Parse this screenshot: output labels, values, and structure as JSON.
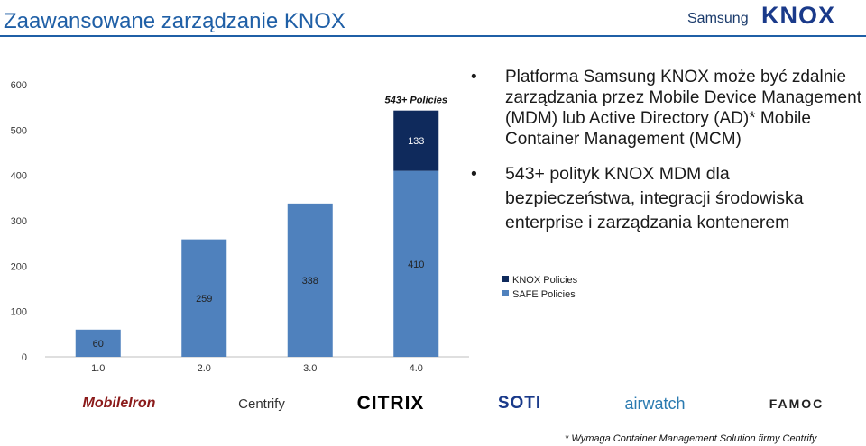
{
  "header": {
    "title": "Zaawansowane zarządzanie KNOX"
  },
  "logo": {
    "brand": "Samsung",
    "mark": "KNOX"
  },
  "bullets": [
    "Platforma Samsung KNOX może być zdalnie zarządzania przez Mobile Device Management (MDM) lub Active Directory (AD)* Mobile Container Management (MCM)",
    "543+ polityk KNOX MDM dla bezpieczeństwa, integracji środowiska enterprise i zarządzania kontenerem"
  ],
  "partners": [
    "MobileIron",
    "Centrify",
    "CITRIX",
    "SOTI",
    "airwatch",
    "FAMOC"
  ],
  "footnote": "* Wymaga Container Management Solution firmy Centrify",
  "colors": {
    "safe": "#4f81bd",
    "knox": "#0f2a5c",
    "title": "#1f5fa6"
  },
  "chart_data": {
    "type": "bar",
    "stacked": true,
    "categories": [
      "1.0",
      "2.0",
      "3.0",
      "4.0"
    ],
    "series": [
      {
        "name": "SAFE Policies",
        "values": [
          60,
          259,
          338,
          410
        ],
        "color": "#4f81bd"
      },
      {
        "name": "KNOX Policies",
        "values": [
          0,
          0,
          0,
          133
        ],
        "color": "#0f2a5c"
      }
    ],
    "annotation": {
      "category": "4.0",
      "text": "543+ Policies"
    },
    "ylim": [
      0,
      600
    ],
    "yticks": [
      0,
      100,
      200,
      300,
      400,
      500,
      600
    ],
    "legend": {
      "placement": "right",
      "entries": [
        "KNOX Policies",
        "SAFE Policies"
      ]
    },
    "grid": false
  }
}
